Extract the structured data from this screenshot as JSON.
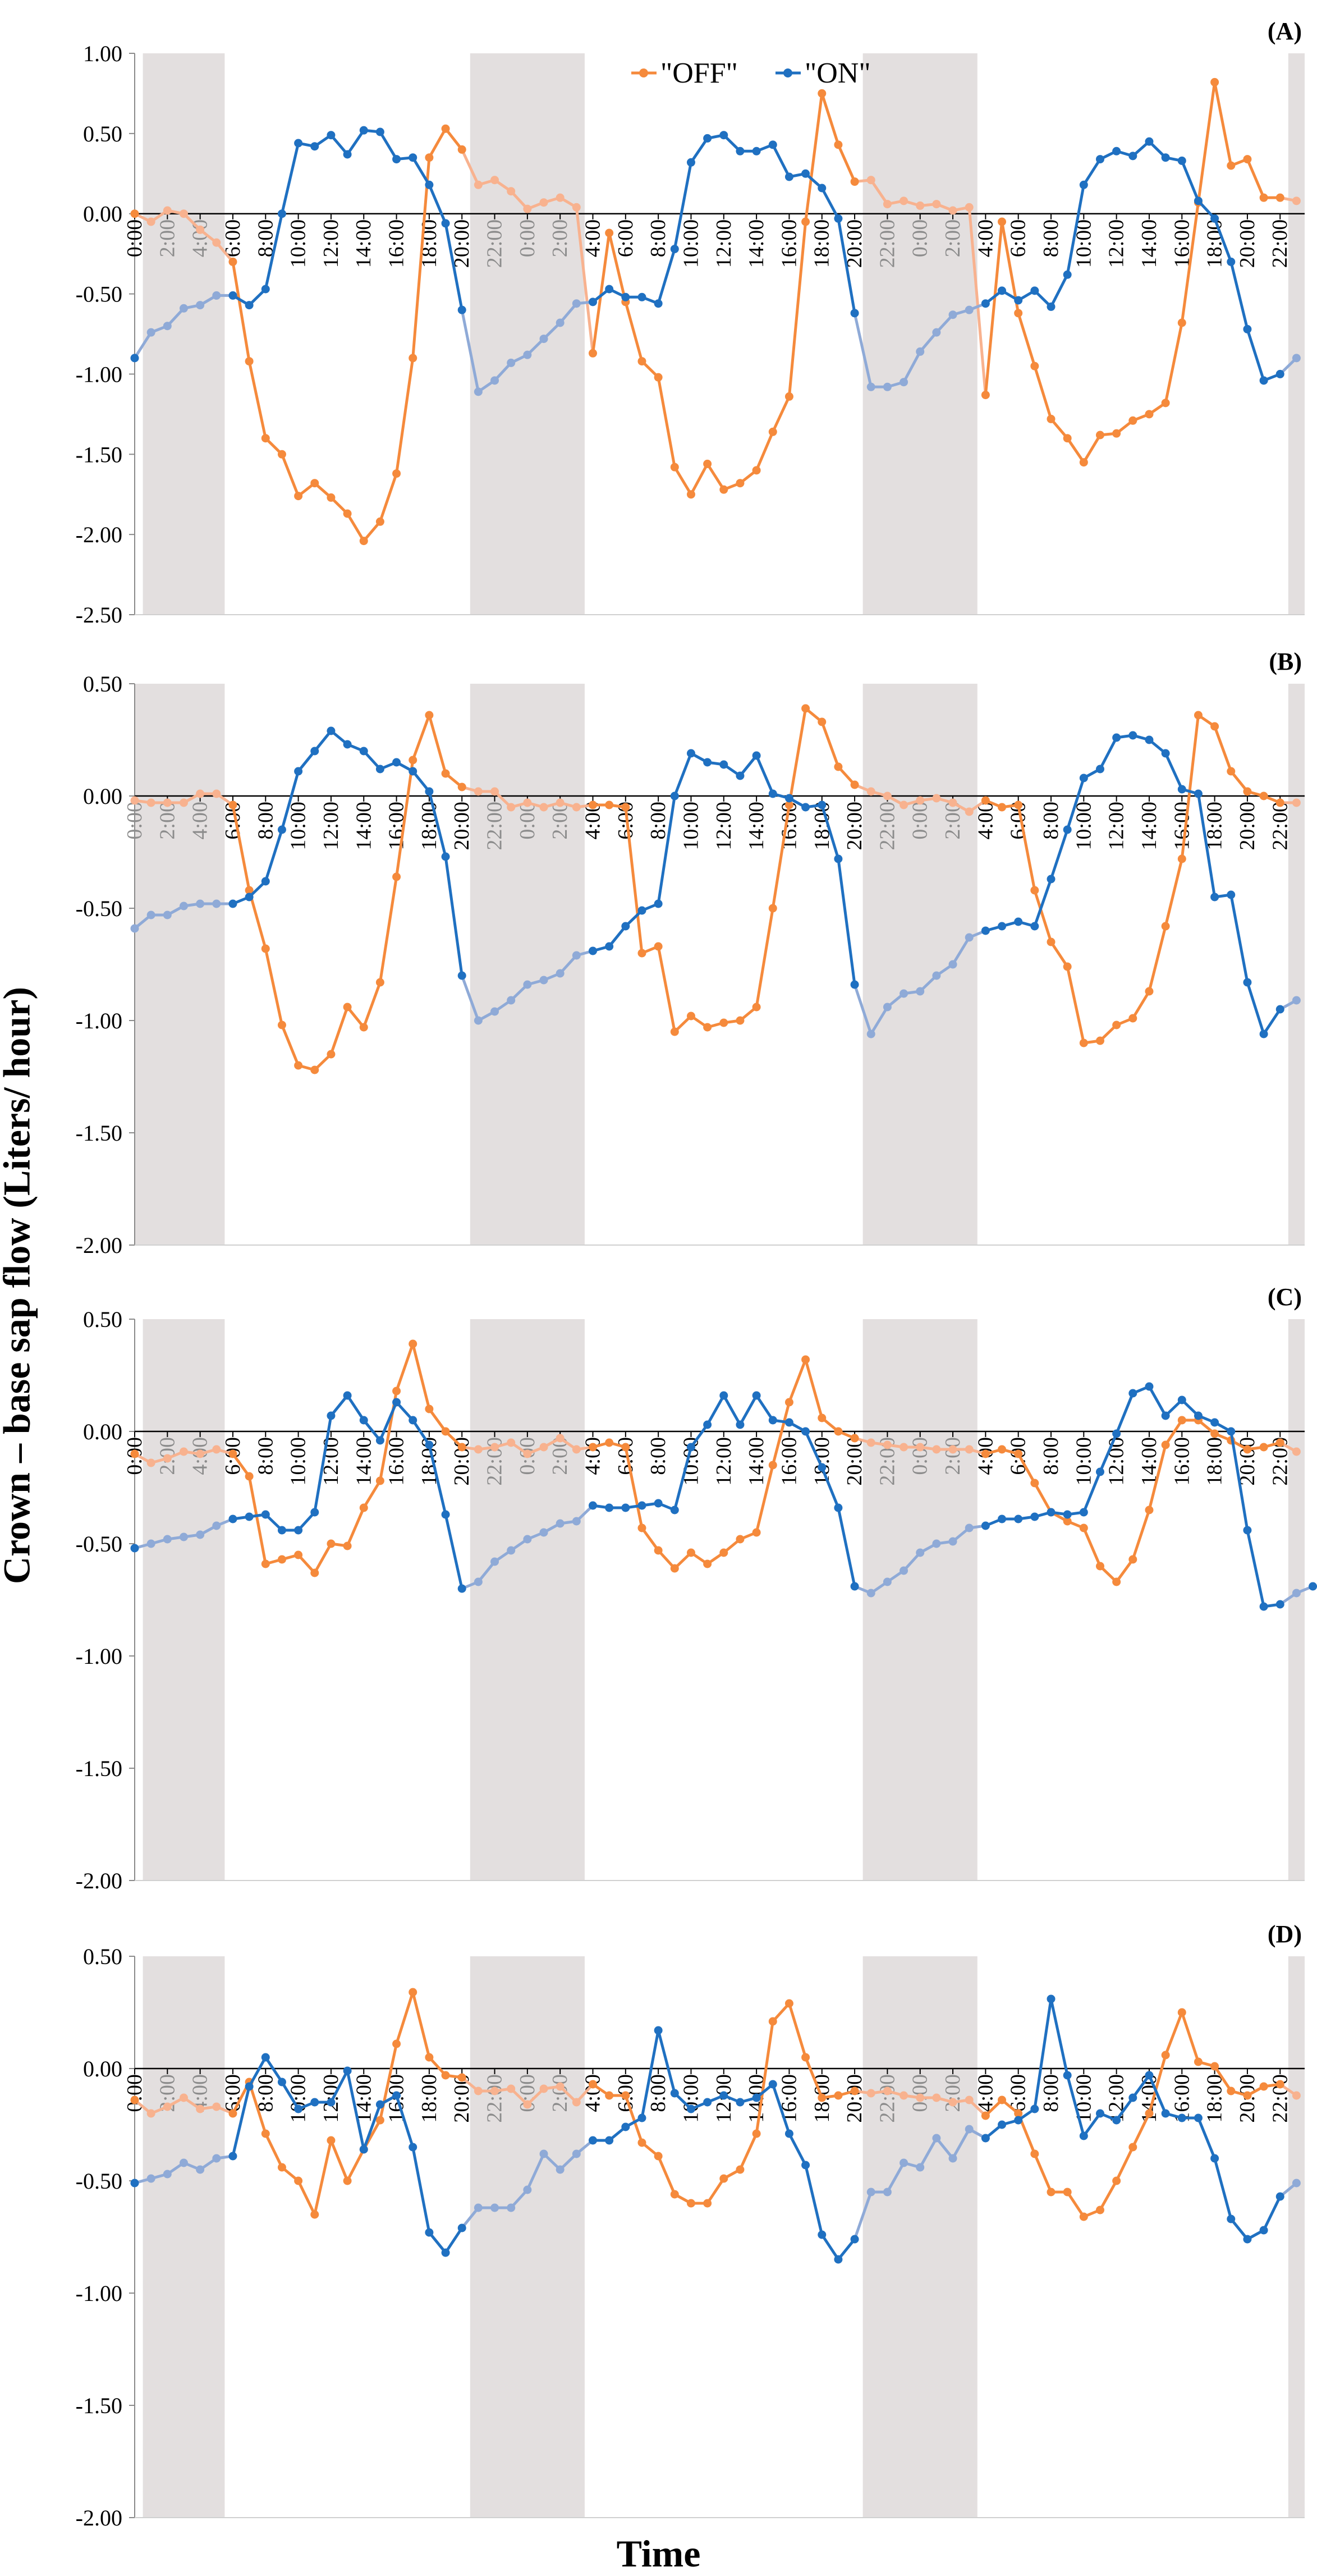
{
  "figure": {
    "ylabel": "Crown – base sap flow (Liters/ hour)",
    "xlabel": "Time",
    "hour_ticks": [
      "0:00",
      "2:00",
      "4:00",
      "6:00",
      "8:00",
      "10:00",
      "12:00",
      "14:00",
      "16:00",
      "18:00",
      "20:00",
      "22:00"
    ],
    "colors": {
      "off": "#f58a3c",
      "off_light": "#f8b28f",
      "on": "#1f70c1",
      "on_light": "#8faad7",
      "shade": "#e3dfdf"
    },
    "legend": {
      "off": "\"OFF\"",
      "on": "\"ON\""
    }
  },
  "chart_data": [
    {
      "type": "line",
      "title": "(A)",
      "ylim": [
        -2.5,
        1.0
      ],
      "ytick_labels": [
        "1.00",
        "0.50",
        "0.00",
        "-0.50",
        "-1.00",
        "-1.50",
        "-2.00",
        "-2.50"
      ],
      "xlim_hours": [
        0,
        71.5
      ],
      "night_shading_hours": [
        [
          0.5,
          5.5
        ],
        [
          20.5,
          27.5
        ],
        [
          44.5,
          51.5
        ],
        [
          70.5,
          71.5
        ]
      ],
      "series": [
        {
          "name": "\"OFF\"",
          "values": [
            0,
            -0.05,
            0.02,
            0,
            -0.1,
            -0.18,
            -0.3,
            -0.92,
            -1.4,
            -1.5,
            -1.76,
            -1.68,
            -1.77,
            -1.87,
            -2.04,
            -1.92,
            -1.62,
            -0.9,
            0.35,
            0.53,
            0.4,
            0.18,
            0.21,
            0.14,
            0.03,
            0.07,
            0.1,
            0.04,
            -0.87,
            -0.12,
            -0.55,
            -0.92,
            -1.02,
            -1.58,
            -1.75,
            -1.56,
            -1.72,
            -1.68,
            -1.6,
            -1.36,
            -1.14,
            -0.05,
            0.75,
            0.43,
            0.2,
            0.21,
            0.06,
            0.08,
            0.05,
            0.06,
            0.02,
            0.04,
            -1.13,
            -0.05,
            -0.62,
            -0.95,
            -1.28,
            -1.4,
            -1.55,
            -1.38,
            -1.37,
            -1.29,
            -1.25,
            -1.18,
            -0.68,
            0.07,
            0.82,
            0.3,
            0.34,
            0.1,
            0.1,
            0.08
          ]
        },
        {
          "name": "\"ON\"",
          "values": [
            -0.9,
            -0.74,
            -0.7,
            -0.59,
            -0.57,
            -0.51,
            -0.51,
            -0.57,
            -0.47,
            0.0,
            0.44,
            0.42,
            0.49,
            0.37,
            0.52,
            0.51,
            0.34,
            0.35,
            0.18,
            -0.06,
            -0.6,
            -1.11,
            -1.04,
            -0.93,
            -0.88,
            -0.78,
            -0.68,
            -0.56,
            -0.55,
            -0.47,
            -0.52,
            -0.52,
            -0.56,
            -0.22,
            0.32,
            0.47,
            0.49,
            0.39,
            0.39,
            0.43,
            0.23,
            0.25,
            0.16,
            -0.03,
            -0.62,
            -1.08,
            -1.08,
            -1.05,
            -0.86,
            -0.74,
            -0.63,
            -0.6,
            -0.56,
            -0.48,
            -0.54,
            -0.48,
            -0.58,
            -0.38,
            0.18,
            0.34,
            0.39,
            0.36,
            0.45,
            0.35,
            0.33,
            0.08,
            -0.03,
            -0.3,
            -0.72,
            -1.04,
            -1.0,
            -0.9
          ]
        }
      ]
    },
    {
      "type": "line",
      "title": "(B)",
      "ylim": [
        -2.0,
        0.5
      ],
      "ytick_labels": [
        "0.50",
        "0.00",
        "-0.50",
        "-1.00",
        "-1.50",
        "-2.00"
      ],
      "xlim_hours": [
        0,
        71.5
      ],
      "night_shading_hours": [
        [
          0,
          5.5
        ],
        [
          20.5,
          27.5
        ],
        [
          44.5,
          51.5
        ],
        [
          70.5,
          71.5
        ]
      ],
      "series": [
        {
          "name": "\"OFF\"",
          "values": [
            -0.02,
            -0.03,
            -0.03,
            -0.03,
            0.01,
            0.01,
            -0.04,
            -0.42,
            -0.68,
            -1.02,
            -1.2,
            -1.22,
            -1.15,
            -0.94,
            -1.03,
            -0.83,
            -0.36,
            0.16,
            0.36,
            0.1,
            0.04,
            0.02,
            0.02,
            -0.05,
            -0.03,
            -0.05,
            -0.03,
            -0.05,
            -0.04,
            -0.04,
            -0.05,
            -0.7,
            -0.67,
            -1.05,
            -0.98,
            -1.03,
            -1.01,
            -1.0,
            -0.94,
            -0.5,
            -0.04,
            0.39,
            0.33,
            0.13,
            0.05,
            0.02,
            0.0,
            -0.04,
            -0.02,
            -0.01,
            -0.03,
            -0.07,
            -0.02,
            -0.05,
            -0.04,
            -0.42,
            -0.65,
            -0.76,
            -1.1,
            -1.09,
            -1.02,
            -0.99,
            -0.87,
            -0.58,
            -0.28,
            0.36,
            0.31,
            0.11,
            0.02,
            0.0,
            -0.03,
            -0.03
          ]
        },
        {
          "name": "\"ON\"",
          "values": [
            -0.59,
            -0.53,
            -0.53,
            -0.49,
            -0.48,
            -0.48,
            -0.48,
            -0.45,
            -0.38,
            -0.15,
            0.11,
            0.2,
            0.29,
            0.23,
            0.2,
            0.12,
            0.15,
            0.11,
            0.02,
            -0.27,
            -0.8,
            -1.0,
            -0.96,
            -0.91,
            -0.84,
            -0.82,
            -0.79,
            -0.71,
            -0.69,
            -0.67,
            -0.58,
            -0.51,
            -0.48,
            0.0,
            0.19,
            0.15,
            0.14,
            0.09,
            0.18,
            0.01,
            -0.01,
            -0.05,
            -0.04,
            -0.28,
            -0.84,
            -1.06,
            -0.94,
            -0.88,
            -0.87,
            -0.8,
            -0.75,
            -0.63,
            -0.6,
            -0.58,
            -0.56,
            -0.58,
            -0.37,
            -0.15,
            0.08,
            0.12,
            0.26,
            0.27,
            0.25,
            0.19,
            0.03,
            0.01,
            -0.45,
            -0.44,
            -0.83,
            -1.06,
            -0.95,
            -0.91
          ]
        }
      ]
    },
    {
      "type": "line",
      "title": "(C)",
      "ylim": [
        -2.0,
        0.5
      ],
      "ytick_labels": [
        "0.50",
        "0.00",
        "-0.50",
        "-1.00",
        "-1.50",
        "-2.00"
      ],
      "xlim_hours": [
        0,
        71.5
      ],
      "night_shading_hours": [
        [
          0.5,
          5.5
        ],
        [
          20.5,
          27.5
        ],
        [
          44.5,
          51.5
        ],
        [
          70.5,
          71.5
        ]
      ],
      "series": [
        {
          "name": "\"OFF\"",
          "values": [
            -0.1,
            -0.14,
            -0.12,
            -0.09,
            -0.1,
            -0.08,
            -0.1,
            -0.2,
            -0.59,
            -0.57,
            -0.55,
            -0.63,
            -0.5,
            -0.51,
            -0.34,
            -0.22,
            0.18,
            0.39,
            0.1,
            0.0,
            -0.07,
            -0.08,
            -0.07,
            -0.05,
            -0.1,
            -0.07,
            -0.03,
            -0.08,
            -0.07,
            -0.05,
            -0.07,
            -0.43,
            -0.53,
            -0.61,
            -0.54,
            -0.59,
            -0.54,
            -0.48,
            -0.45,
            -0.15,
            0.13,
            0.32,
            0.06,
            0.0,
            -0.03,
            -0.05,
            -0.06,
            -0.07,
            -0.07,
            -0.08,
            -0.08,
            -0.08,
            -0.1,
            -0.08,
            -0.1,
            -0.23,
            -0.36,
            -0.4,
            -0.43,
            -0.6,
            -0.67,
            -0.57,
            -0.35,
            -0.06,
            0.05,
            0.05,
            -0.01,
            -0.04,
            -0.08,
            -0.07,
            -0.05,
            -0.09
          ]
        },
        {
          "name": "\"ON\"",
          "values": [
            -0.52,
            -0.5,
            -0.48,
            -0.47,
            -0.46,
            -0.42,
            -0.39,
            -0.38,
            -0.37,
            -0.44,
            -0.44,
            -0.36,
            0.07,
            0.16,
            0.05,
            -0.04,
            0.13,
            0.05,
            -0.06,
            -0.37,
            -0.7,
            -0.67,
            -0.58,
            -0.53,
            -0.48,
            -0.45,
            -0.41,
            -0.4,
            -0.33,
            -0.34,
            -0.34,
            -0.33,
            -0.32,
            -0.35,
            -0.07,
            0.03,
            0.16,
            0.03,
            0.16,
            0.05,
            0.04,
            0.0,
            -0.16,
            -0.34,
            -0.69,
            -0.72,
            -0.67,
            -0.62,
            -0.54,
            -0.5,
            -0.49,
            -0.43,
            -0.42,
            -0.39,
            -0.39,
            -0.38,
            -0.36,
            -0.37,
            -0.36,
            -0.18,
            -0.01,
            0.17,
            0.2,
            0.07,
            0.14,
            0.07,
            0.04,
            0.0,
            -0.44,
            -0.78,
            -0.77,
            -0.72,
            -0.69
          ]
        }
      ]
    },
    {
      "type": "line",
      "title": "(D)",
      "ylim": [
        -2.0,
        0.5
      ],
      "ytick_labels": [
        "0.50",
        "0.00",
        "-0.50",
        "-1.00",
        "-1.50",
        "-2.00"
      ],
      "xlim_hours": [
        0,
        71.5
      ],
      "night_shading_hours": [
        [
          0.5,
          5.5
        ],
        [
          20.5,
          27.5
        ],
        [
          44.5,
          51.5
        ],
        [
          70.5,
          71.5
        ]
      ],
      "series": [
        {
          "name": "\"OFF\"",
          "values": [
            -0.14,
            -0.2,
            -0.17,
            -0.13,
            -0.18,
            -0.17,
            -0.2,
            -0.06,
            -0.29,
            -0.44,
            -0.5,
            -0.65,
            -0.32,
            -0.5,
            -0.36,
            -0.23,
            0.11,
            0.34,
            0.05,
            -0.03,
            -0.04,
            -0.1,
            -0.1,
            -0.09,
            -0.16,
            -0.09,
            -0.08,
            -0.15,
            -0.07,
            -0.12,
            -0.12,
            -0.33,
            -0.39,
            -0.56,
            -0.6,
            -0.6,
            -0.49,
            -0.45,
            -0.29,
            0.21,
            0.29,
            0.05,
            -0.13,
            -0.12,
            -0.1,
            -0.11,
            -0.1,
            -0.12,
            -0.13,
            -0.13,
            -0.15,
            -0.14,
            -0.21,
            -0.14,
            -0.2,
            -0.38,
            -0.55,
            -0.55,
            -0.66,
            -0.63,
            -0.5,
            -0.35,
            -0.2,
            0.06,
            0.25,
            0.03,
            0.01,
            -0.1,
            -0.12,
            -0.08,
            -0.07,
            -0.12
          ]
        },
        {
          "name": "\"ON\"",
          "values": [
            -0.51,
            -0.49,
            -0.47,
            -0.42,
            -0.45,
            -0.4,
            -0.39,
            -0.08,
            0.05,
            -0.06,
            -0.18,
            -0.15,
            -0.15,
            -0.01,
            -0.36,
            -0.16,
            -0.12,
            -0.35,
            -0.73,
            -0.82,
            -0.71,
            -0.62,
            -0.62,
            -0.62,
            -0.54,
            -0.38,
            -0.45,
            -0.38,
            -0.32,
            -0.32,
            -0.26,
            -0.22,
            0.17,
            -0.11,
            -0.18,
            -0.15,
            -0.12,
            -0.15,
            -0.13,
            -0.07,
            -0.29,
            -0.43,
            -0.74,
            -0.85,
            -0.76,
            -0.55,
            -0.55,
            -0.42,
            -0.44,
            -0.31,
            -0.4,
            -0.27,
            -0.31,
            -0.25,
            -0.23,
            -0.18,
            0.31,
            -0.03,
            -0.3,
            -0.2,
            -0.23,
            -0.13,
            -0.03,
            -0.2,
            -0.22,
            -0.22,
            -0.4,
            -0.67,
            -0.76,
            -0.72,
            -0.57,
            -0.51
          ]
        }
      ]
    }
  ]
}
